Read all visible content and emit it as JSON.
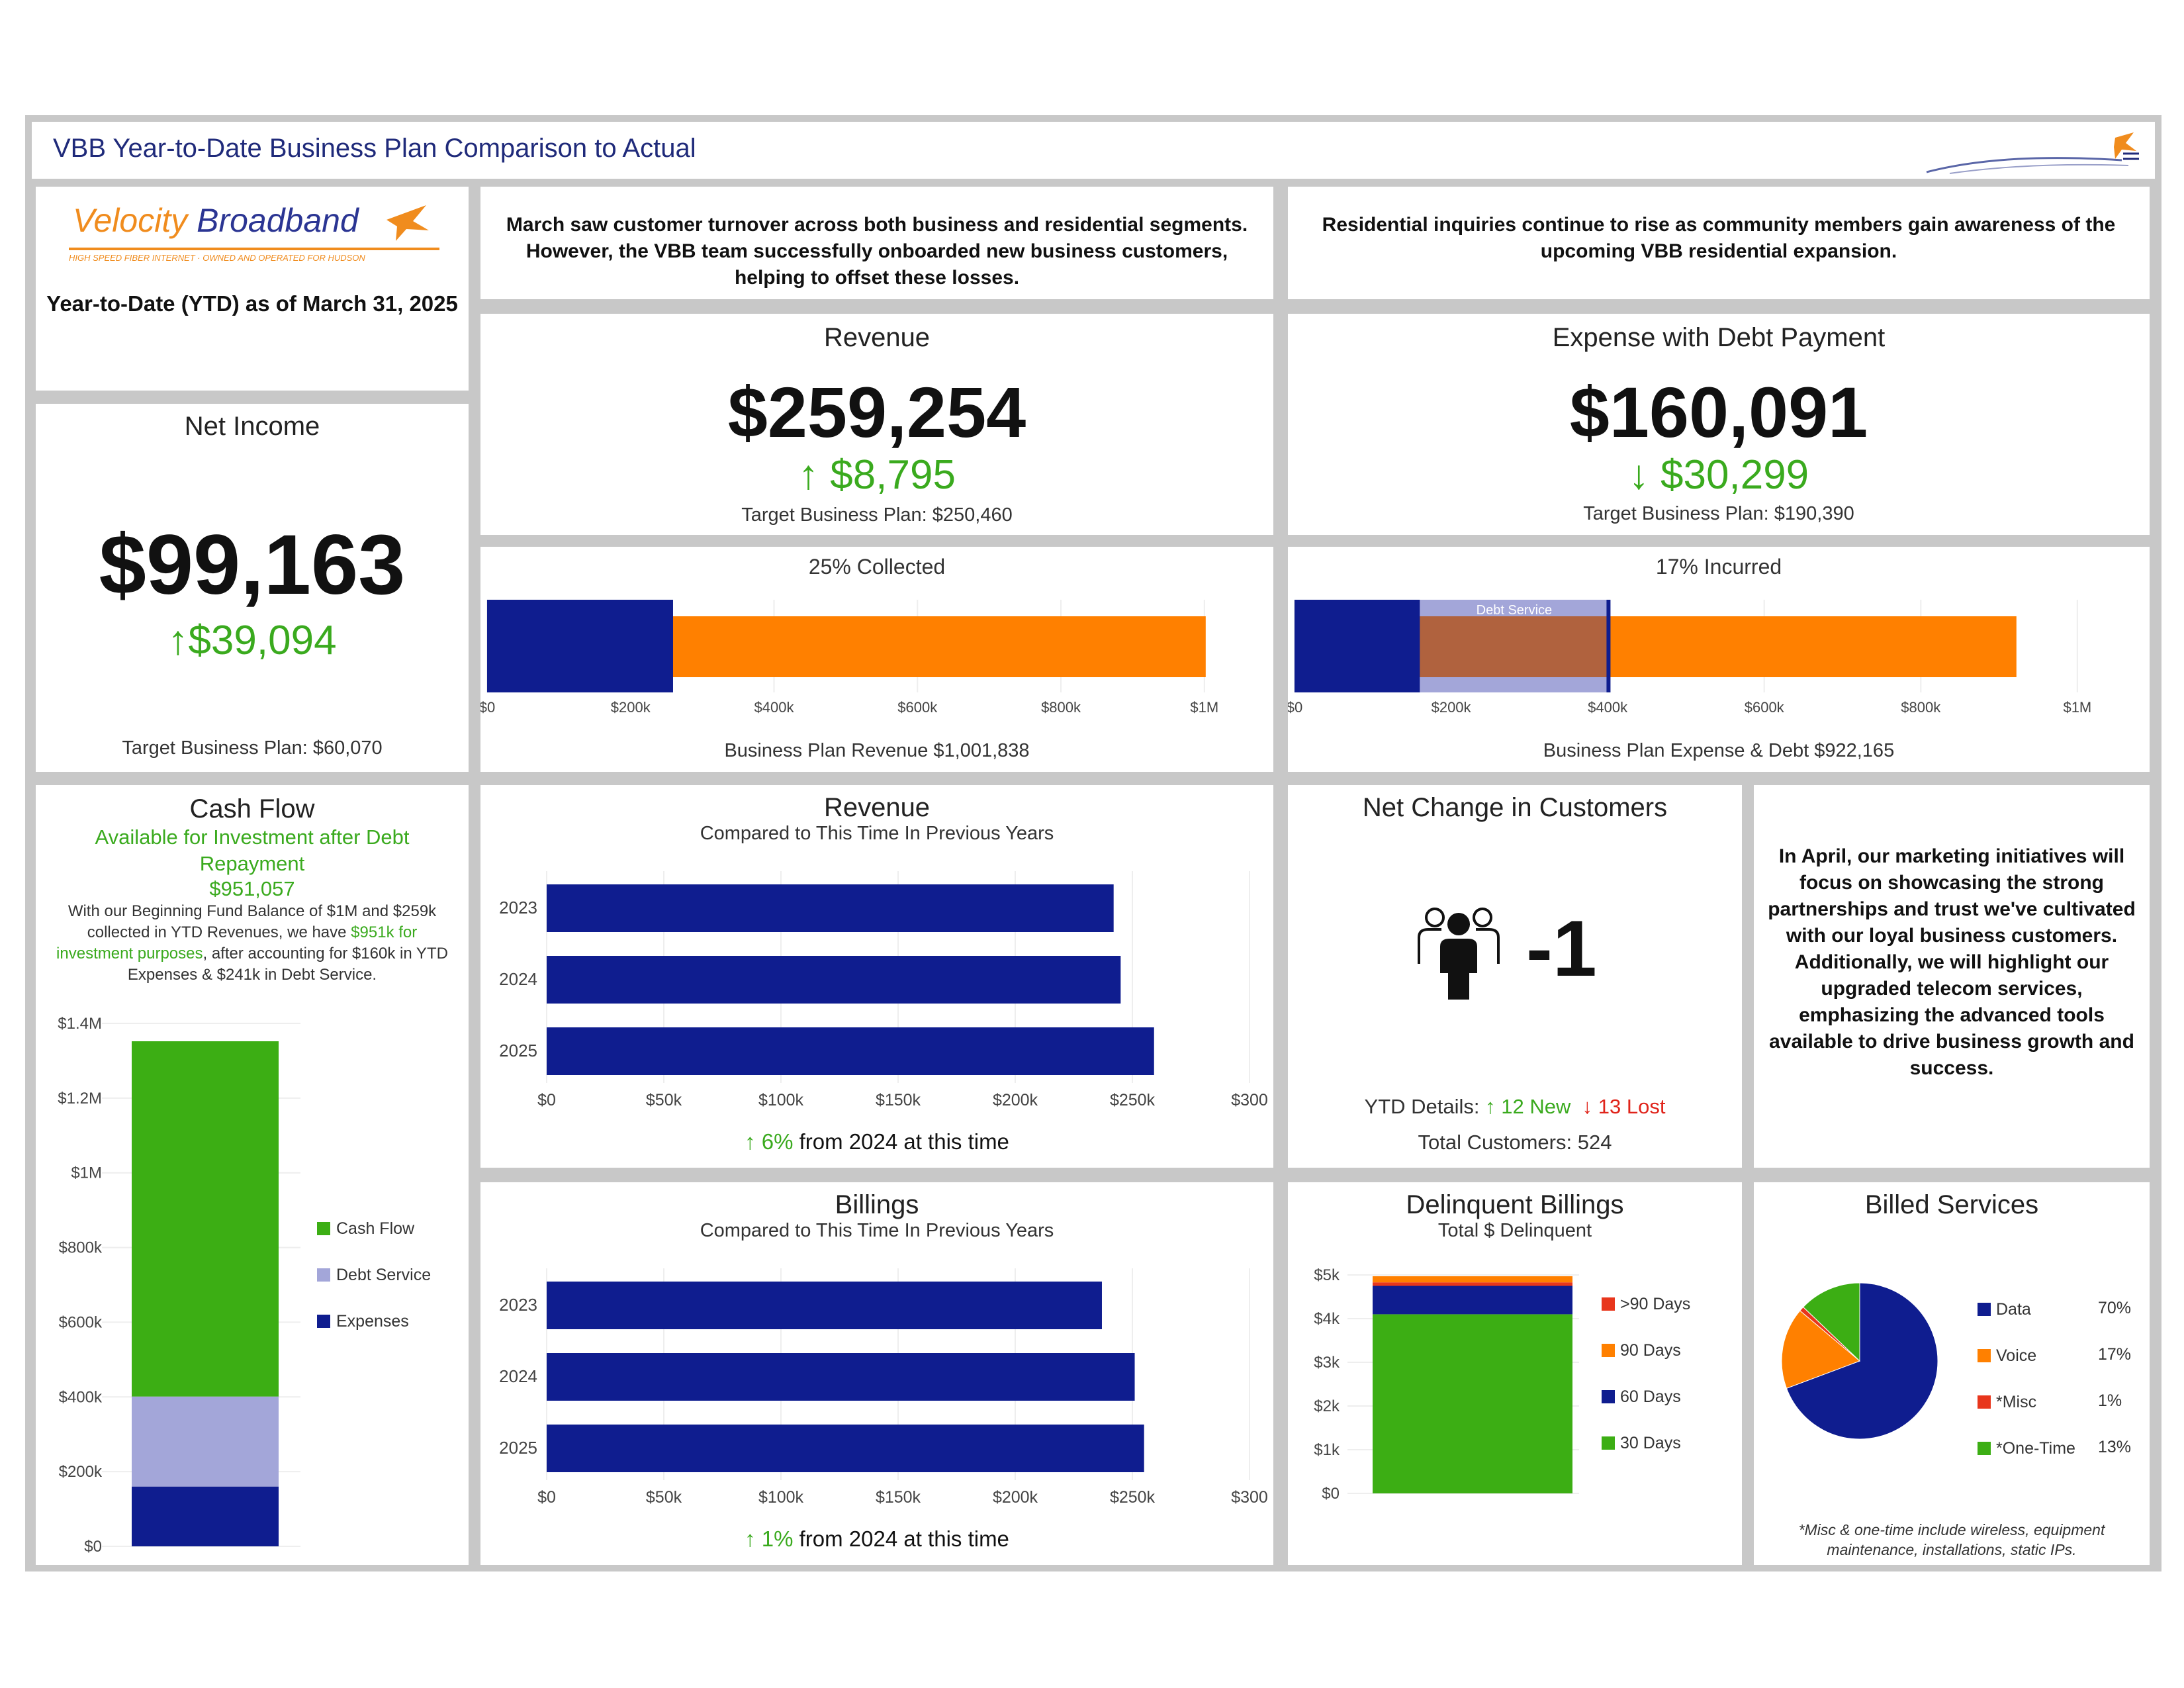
{
  "header": {
    "title": "VBB Year-to-Date Business Plan Comparison to Actual"
  },
  "logo": {
    "brand_velocity": "Velocity",
    "brand_broadband": " Broadband",
    "tagline": "HIGH SPEED FIBER INTERNET · OWNED AND OPERATED FOR HUDSON",
    "ytd_label": "Year-to-Date (YTD) as of March 31, 2025"
  },
  "notes": {
    "business": "March saw customer turnover across both business and residential segments. However, the VBB team successfully onboarded new business customers, helping to offset these losses.",
    "residential": "Residential inquiries continue to rise as community members gain awareness of the upcoming VBB residential expansion.",
    "april": "In April, our marketing initiatives will focus on showcasing the strong partnerships and trust we've cultivated with our loyal business customers. Additionally, we will highlight our upgraded telecom services, emphasizing the advanced tools available to drive business growth and success."
  },
  "net_income": {
    "title": "Net Income",
    "value": "$99,163",
    "delta": "↑$39,094",
    "target": "Target Business Plan: $60,070"
  },
  "revenue_kpi": {
    "title": "Revenue",
    "value": "$259,254",
    "delta": "↑ $8,795",
    "target": "Target Business Plan: $250,460"
  },
  "expense_kpi": {
    "title": "Expense with Debt Payment",
    "value": "$160,091",
    "delta": "↓ $30,299",
    "target": "Target Business Plan: $190,390"
  },
  "revenue_progress": {
    "title": "25% Collected",
    "footer": "Business Plan Revenue $1,001,838",
    "ticks": [
      "$0",
      "$200k",
      "$400k",
      "$600k",
      "$800k",
      "$1M"
    ]
  },
  "expense_progress": {
    "title": "17% Incurred",
    "footer": "Business Plan Expense & Debt $922,165",
    "debt_label": "Debt Service",
    "ticks": [
      "$0",
      "$200k",
      "$400k",
      "$600k",
      "$800k",
      "$1M"
    ]
  },
  "cash_flow": {
    "title": "Cash Flow",
    "subtitle": "Available for Investment after Debt Repayment",
    "amount": "$951,057",
    "desc_a": "With our Beginning Fund Balance of $1M and $259k collected in YTD Revenues, we have ",
    "desc_b": "$951k for investment purposes",
    "desc_c": ", after accounting for $160k in YTD Expenses & $241k in Debt Service."
  },
  "revenue_hist": {
    "title": "Revenue",
    "subtitle": "Compared to This Time In Previous Years",
    "foot_pct": "↑ 6%",
    "foot_text": " from 2024 at this time"
  },
  "billings_hist": {
    "title": "Billings",
    "subtitle": "Compared to This Time In Previous Years",
    "foot_pct": "↑ 1%",
    "foot_text": " from 2024 at this time"
  },
  "customers": {
    "title": "Net Change in Customers",
    "value": "-1",
    "details_label": "YTD Details: ",
    "new": "↑ 12 New",
    "lost": "↓ 13 Lost",
    "total": "Total Customers: 524"
  },
  "delinquent": {
    "title": "Delinquent Billings",
    "subtitle": "Total $ Delinquent"
  },
  "billed_services": {
    "title": "Billed Services",
    "footnote": "*Misc & one-time include wireless, equipment maintenance, installations, static IPs."
  },
  "colors": {
    "navy": "#0f1d8f",
    "orange": "#ff8000",
    "green": "#3cae14",
    "lavender": "#a3a6d9",
    "red": "#e8361c",
    "debt_brown": "#b0623e"
  },
  "chart_data": [
    {
      "id": "revenue_progress",
      "type": "bar",
      "categories": [
        "Collected",
        "Business Plan"
      ],
      "values": [
        259254,
        1001838
      ],
      "xlim": [
        0,
        1050000
      ]
    },
    {
      "id": "expense_progress",
      "type": "bar",
      "series": [
        {
          "name": "Expense",
          "values": [
            160091
          ]
        },
        {
          "name": "Debt Service",
          "values": [
            241000
          ]
        },
        {
          "name": "Business Plan",
          "values": [
            922165
          ]
        }
      ],
      "xlim": [
        0,
        1050000
      ]
    },
    {
      "id": "cash_flow",
      "type": "bar",
      "categories": [
        "YTD"
      ],
      "series": [
        {
          "name": "Cash Flow",
          "values": [
            951057
          ]
        },
        {
          "name": "Debt Service",
          "values": [
            241000
          ]
        },
        {
          "name": "Expenses",
          "values": [
            160091
          ]
        }
      ],
      "ylim": [
        0,
        1400000
      ],
      "yticks": [
        "$0",
        "$200k",
        "$400k",
        "$600k",
        "$800k",
        "$1M",
        "$1.2M",
        "$1.4M"
      ],
      "legend": "right"
    },
    {
      "id": "revenue_hist",
      "type": "bar",
      "categories": [
        "2023",
        "2024",
        "2025"
      ],
      "values": [
        242000,
        245000,
        259254
      ],
      "xlim": [
        0,
        300000
      ],
      "xticks": [
        "$0",
        "$50k",
        "$100k",
        "$150k",
        "$200k",
        "$250k",
        "$300"
      ]
    },
    {
      "id": "billings_hist",
      "type": "bar",
      "categories": [
        "2023",
        "2024",
        "2025"
      ],
      "values": [
        237000,
        251000,
        255000
      ],
      "xlim": [
        0,
        300000
      ],
      "xticks": [
        "$0",
        "$50k",
        "$100k",
        "$150k",
        "$200k",
        "$250k",
        "$300"
      ]
    },
    {
      "id": "delinquent",
      "type": "bar",
      "categories": [
        "Total"
      ],
      "series": [
        {
          "name": "30 Days",
          "values": [
            4100
          ]
        },
        {
          "name": "60 Days",
          "values": [
            650
          ]
        },
        {
          "name": ">90 Days",
          "values": [
            80
          ]
        },
        {
          "name": "90 Days",
          "values": [
            140
          ]
        }
      ],
      "ylim": [
        0,
        5000
      ],
      "yticks": [
        "$0",
        "$1k",
        "$2k",
        "$3k",
        "$4k",
        "$5k"
      ],
      "legend": ">90 Days,90 Days,60 Days,30 Days"
    },
    {
      "id": "billed_services",
      "type": "pie",
      "labels": [
        "Data",
        "Voice",
        "*Misc",
        "*One-Time"
      ],
      "values": [
        70,
        17,
        1,
        13
      ],
      "pct_labels": [
        "70%",
        "17%",
        "1%",
        "13%"
      ]
    }
  ]
}
